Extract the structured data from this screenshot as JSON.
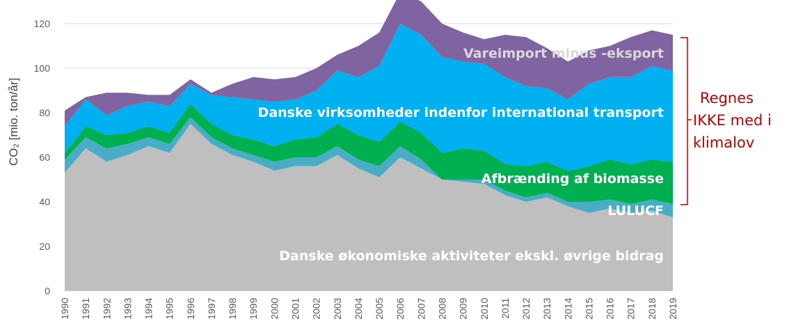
{
  "chart_data": {
    "type": "area",
    "stacked": true,
    "ylabel": "CO₂ [mio. ton/år]",
    "ylim": [
      0,
      130
    ],
    "yticks": [
      0,
      20,
      40,
      60,
      80,
      100,
      120
    ],
    "grid": true,
    "x": [
      "1990",
      "1991",
      "1992",
      "1993",
      "1994",
      "1995",
      "1996",
      "1997",
      "1998",
      "1999",
      "2000",
      "2001",
      "2002",
      "2003",
      "2004",
      "2005",
      "2006",
      "2007",
      "2008",
      "2009",
      "2010",
      "2011",
      "2012",
      "2013",
      "2014",
      "2015",
      "2016",
      "2017",
      "2018",
      "2019"
    ],
    "series": [
      {
        "name": "Danske økonomiske aktiviteter ekskl. øvrige bidrag",
        "color": "#bfbfbf",
        "label_color": "#ffffff",
        "values": [
          53,
          64,
          58,
          61,
          65,
          62,
          75,
          66,
          61,
          58,
          54,
          56,
          56,
          61,
          55,
          51,
          60,
          55,
          50,
          49,
          48,
          43,
          40,
          42,
          38,
          35,
          37,
          35,
          36,
          33
        ]
      },
      {
        "name": "LULUCF",
        "color": "#4bacc6",
        "label_color": "#ffffff",
        "values": [
          6,
          5,
          6,
          5,
          4,
          4,
          3,
          3,
          3,
          3,
          4,
          4,
          4,
          4,
          4,
          5,
          5,
          4,
          0,
          1,
          2,
          2,
          2,
          2,
          2,
          5,
          4,
          4,
          5,
          6
        ]
      },
      {
        "name": "Afbrænding af biomasse",
        "color": "#00b050",
        "label_color": "#ffffff",
        "values": [
          3,
          5,
          6,
          5,
          5,
          5,
          6,
          6,
          6,
          7,
          7,
          8,
          9,
          10,
          11,
          11,
          11,
          12,
          12,
          14,
          13,
          12,
          14,
          14,
          14,
          16,
          18,
          18,
          18,
          19
        ]
      },
      {
        "name": "Danske virksomheder indenfor international transport",
        "color": "#00b0f0",
        "label_color": "#ffffff",
        "values": [
          12,
          12,
          9,
          12,
          11,
          12,
          9,
          13,
          17,
          18,
          20,
          18,
          21,
          24,
          26,
          34,
          44,
          44,
          43,
          39,
          39,
          39,
          36,
          33,
          32,
          37,
          37,
          39,
          42,
          41
        ]
      },
      {
        "name": "Vareimport minus -eksport",
        "color": "#8064a2",
        "label_color": "#d9d9d9",
        "values": [
          7,
          1,
          10,
          6,
          3,
          5,
          2,
          1,
          6,
          10,
          10,
          10,
          10,
          7,
          14,
          15,
          14,
          15,
          15,
          13,
          11,
          19,
          22,
          18,
          17,
          15,
          14,
          18,
          16,
          16
        ]
      }
    ],
    "bracket_note": [
      "Regnes",
      "IKKE med i",
      "klimalov"
    ]
  }
}
